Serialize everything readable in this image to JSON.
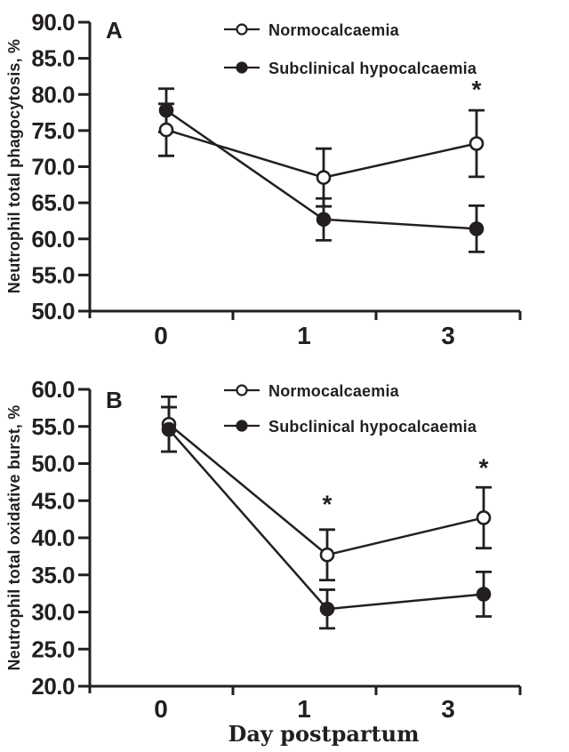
{
  "figure": {
    "ink": "#231f20",
    "background": "#ffffff",
    "open_marker_fill": "#ffffff",
    "x_axis_shared_label": "Day postpartum"
  },
  "chart_data": [
    {
      "type": "line",
      "panel_label": "A",
      "ylabel": "Neutrophil total phagocytosis, %",
      "xlabel": "",
      "categories": [
        "0",
        "1",
        "3"
      ],
      "x_values_days": [
        0,
        1,
        3
      ],
      "ylim": [
        50.0,
        90.0
      ],
      "yticks": [
        90.0,
        85.0,
        80.0,
        75.0,
        70.0,
        65.0,
        60.0,
        55.0,
        50.0
      ],
      "ytick_labels": [
        "90.0",
        "85.0",
        "80.0",
        "75.0",
        "70.0",
        "65.0",
        "60.0",
        "55.0",
        "50.0"
      ],
      "grid": false,
      "legend_position": "top-right-inside",
      "error_bars": "symmetric, read from whisker caps",
      "series": [
        {
          "name": "Normocalcaemia",
          "marker": "open-circle",
          "values": [
            75.1,
            68.5,
            73.2
          ],
          "errors": [
            3.6,
            4.0,
            4.6
          ]
        },
        {
          "name": "Subclinical hypocalcaemia",
          "marker": "filled-circle",
          "values": [
            77.8,
            62.7,
            61.4
          ],
          "errors": [
            3.0,
            2.9,
            3.2
          ]
        }
      ],
      "annotations": [
        {
          "text": "*",
          "x_index": 2,
          "y": 81.4
        }
      ]
    },
    {
      "type": "line",
      "panel_label": "B",
      "ylabel": "Neutrophil total oxidative burst, %",
      "xlabel": "Day postpartum",
      "categories": [
        "0",
        "1",
        "3"
      ],
      "x_values_days": [
        0,
        1,
        3
      ],
      "ylim": [
        20.0,
        60.0
      ],
      "yticks": [
        60.0,
        55.0,
        50.0,
        45.0,
        40.0,
        35.0,
        30.0,
        25.0,
        20.0
      ],
      "ytick_labels": [
        "60.0",
        "55.0",
        "50.0",
        "45.0",
        "40.0",
        "35.0",
        "30.0",
        "25.0",
        "20.0"
      ],
      "grid": false,
      "legend_position": "top-right-inside",
      "error_bars": "symmetric, read from whisker caps",
      "series": [
        {
          "name": "Normocalcaemia",
          "marker": "open-circle",
          "values": [
            55.3,
            37.7,
            42.7
          ],
          "errors": [
            3.7,
            3.4,
            4.1
          ]
        },
        {
          "name": "Subclinical hypocalcaemia",
          "marker": "filled-circle",
          "values": [
            54.6,
            30.4,
            32.4
          ],
          "errors": [
            3.0,
            2.6,
            3.0
          ]
        }
      ],
      "annotations": [
        {
          "text": "*",
          "x_index": 1,
          "y": 45.2
        },
        {
          "text": "*",
          "x_index": 2,
          "y": 50.1
        }
      ]
    }
  ]
}
